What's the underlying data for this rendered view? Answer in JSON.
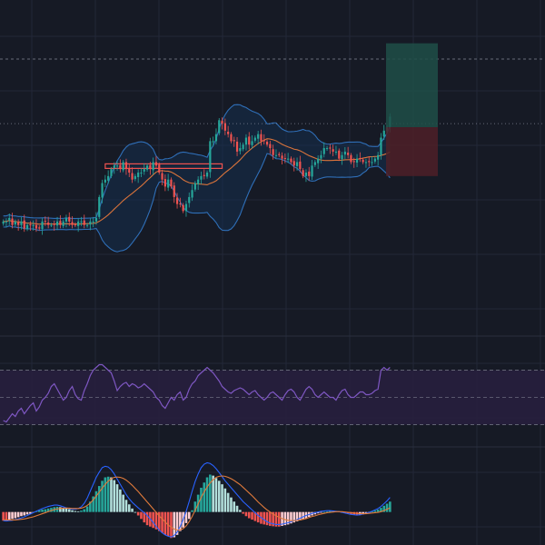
{
  "colors": {
    "background": "#161a25",
    "grid": "#232838",
    "up": "#26a69a",
    "down": "#ef5350",
    "bb_line": "#2f6fb8",
    "bb_fill": "#16304f",
    "ma": "#d9733b",
    "rsi": "#7e57c2",
    "rsi_band": "#271f3e",
    "macd_line": "#2962ff",
    "signal_line": "#e07a3b",
    "hist_up_strong": "#26a69a",
    "hist_up_weak": "#b2dfdb",
    "hist_down_strong": "#ef5350",
    "hist_down_weak": "#ffcdd2",
    "target_zone": "#1f4f48",
    "stop_zone": "#4d2028",
    "level_line": "#9aa0ad"
  },
  "chart_data": [
    {
      "type": "candlestick",
      "panel": "price",
      "overlays": [
        "bollinger_bands",
        "moving_average"
      ],
      "closes": [
        57,
        57,
        58,
        56,
        57,
        56,
        57,
        55,
        56,
        56,
        56,
        55,
        55,
        57,
        57,
        56,
        56,
        56,
        57,
        56,
        57,
        58,
        57,
        56,
        56,
        57,
        57,
        56,
        56,
        57,
        57,
        58,
        64,
        68,
        69,
        70,
        72,
        73,
        73,
        72,
        74,
        72,
        71,
        69,
        70,
        71,
        71,
        72,
        73,
        72,
        74,
        73,
        71,
        69,
        67,
        69,
        67,
        64,
        62,
        62,
        60,
        62,
        64,
        66,
        68,
        69,
        70,
        70,
        71,
        80,
        80,
        82,
        86,
        85,
        83,
        82,
        80,
        80,
        77,
        78,
        79,
        81,
        79,
        80,
        81,
        82,
        80,
        80,
        79,
        78,
        76,
        76,
        76,
        75,
        75,
        75,
        74,
        73,
        74,
        72,
        70,
        71,
        70,
        73,
        74,
        75,
        76,
        78,
        78,
        78,
        77,
        77,
        75,
        76,
        77,
        76,
        74,
        74,
        75,
        75,
        74,
        74,
        74,
        74,
        75,
        76,
        81,
        83,
        84,
        87
      ],
      "price_range": [
        45,
        110
      ],
      "level_line_value": 85,
      "position": {
        "entry": 84,
        "target": 108,
        "stop": 70
      }
    },
    {
      "type": "line",
      "panel": "rsi",
      "band": [
        30,
        70
      ],
      "midline": 50,
      "range": [
        15,
        95
      ],
      "values": [
        33,
        32,
        35,
        38,
        36,
        40,
        42,
        38,
        41,
        44,
        46,
        40,
        43,
        48,
        50,
        53,
        58,
        60,
        56,
        52,
        48,
        50,
        55,
        58,
        52,
        49,
        48,
        55,
        60,
        66,
        70,
        72,
        74,
        74,
        72,
        70,
        68,
        62,
        55,
        58,
        60,
        61,
        58,
        60,
        59,
        57,
        58,
        60,
        58,
        56,
        54,
        50,
        48,
        44,
        42,
        46,
        50,
        48,
        52,
        54,
        48,
        50,
        56,
        60,
        62,
        66,
        68,
        70,
        72,
        70,
        68,
        65,
        62,
        58,
        56,
        54,
        53,
        55,
        56,
        57,
        56,
        54,
        52,
        54,
        55,
        52,
        50,
        48,
        50,
        53,
        54,
        52,
        50,
        48,
        52,
        55,
        56,
        54,
        50,
        48,
        52,
        56,
        58,
        56,
        52,
        50,
        52,
        54,
        52,
        50,
        50,
        48,
        52,
        55,
        56,
        52,
        50,
        50,
        52,
        54,
        54,
        52,
        52,
        53,
        55,
        56,
        70,
        72,
        70,
        72
      ]
    },
    {
      "type": "histogram",
      "panel": "macd",
      "range": [
        -0.9,
        1.8
      ],
      "histogram": [
        -0.25,
        -0.25,
        -0.22,
        -0.2,
        -0.18,
        -0.15,
        -0.12,
        -0.1,
        -0.07,
        -0.05,
        -0.02,
        0.02,
        0.05,
        0.07,
        0.08,
        0.1,
        0.12,
        0.14,
        0.15,
        0.14,
        0.12,
        0.1,
        0.08,
        0.05,
        0.03,
        0.02,
        0.04,
        0.08,
        0.16,
        0.3,
        0.45,
        0.6,
        0.75,
        0.9,
        1.0,
        1.02,
        1.0,
        0.92,
        0.8,
        0.65,
        0.5,
        0.35,
        0.22,
        0.1,
        0.0,
        -0.1,
        -0.2,
        -0.3,
        -0.38,
        -0.42,
        -0.46,
        -0.5,
        -0.55,
        -0.6,
        -0.66,
        -0.7,
        -0.75,
        -0.73,
        -0.66,
        -0.55,
        -0.45,
        -0.32,
        -0.2,
        0.05,
        0.3,
        0.5,
        0.7,
        0.85,
        1.0,
        1.08,
        1.05,
        0.98,
        0.9,
        0.8,
        0.68,
        0.55,
        0.42,
        0.3,
        0.18,
        0.06,
        -0.05,
        -0.12,
        -0.18,
        -0.22,
        -0.26,
        -0.3,
        -0.34,
        -0.36,
        -0.38,
        -0.4,
        -0.41,
        -0.42,
        -0.42,
        -0.4,
        -0.38,
        -0.36,
        -0.33,
        -0.3,
        -0.27,
        -0.24,
        -0.22,
        -0.18,
        -0.14,
        -0.1,
        -0.07,
        -0.04,
        -0.02,
        0.0,
        0.02,
        0.03,
        0.04,
        0.03,
        0.02,
        0.0,
        -0.02,
        -0.04,
        -0.06,
        -0.08,
        -0.1,
        -0.09,
        -0.07,
        -0.05,
        -0.02,
        0.01,
        0.04,
        0.07,
        0.12,
        0.18,
        0.24,
        0.3
      ],
      "macd_line": [
        -0.25,
        -0.26,
        -0.25,
        -0.24,
        -0.22,
        -0.2,
        -0.17,
        -0.14,
        -0.1,
        -0.06,
        -0.02,
        0.02,
        0.06,
        0.1,
        0.13,
        0.16,
        0.18,
        0.2,
        0.2,
        0.18,
        0.15,
        0.12,
        0.1,
        0.08,
        0.08,
        0.1,
        0.15,
        0.25,
        0.4,
        0.6,
        0.8,
        1.0,
        1.15,
        1.28,
        1.32,
        1.3,
        1.22,
        1.1,
        0.95,
        0.8,
        0.65,
        0.5,
        0.38,
        0.28,
        0.2,
        0.12,
        0.05,
        -0.02,
        -0.1,
        -0.2,
        -0.3,
        -0.42,
        -0.52,
        -0.6,
        -0.66,
        -0.7,
        -0.72,
        -0.68,
        -0.58,
        -0.42,
        -0.22,
        0.02,
        0.3,
        0.6,
        0.88,
        1.1,
        1.28,
        1.38,
        1.42,
        1.4,
        1.34,
        1.25,
        1.14,
        1.02,
        0.9,
        0.8,
        0.7,
        0.6,
        0.5,
        0.4,
        0.3,
        0.22,
        0.14,
        0.06,
        -0.02,
        -0.1,
        -0.16,
        -0.22,
        -0.28,
        -0.32,
        -0.34,
        -0.36,
        -0.36,
        -0.35,
        -0.33,
        -0.31,
        -0.28,
        -0.25,
        -0.22,
        -0.18,
        -0.14,
        -0.1,
        -0.07,
        -0.04,
        -0.02,
        0.0,
        0.02,
        0.03,
        0.04,
        0.04,
        0.03,
        0.02,
        0.01,
        -0.01,
        -0.03,
        -0.05,
        -0.07,
        -0.08,
        -0.09,
        -0.08,
        -0.06,
        -0.04,
        -0.01,
        0.02,
        0.06,
        0.1,
        0.16,
        0.24,
        0.32,
        0.42
      ],
      "signal_line": [
        -0.22,
        -0.23,
        -0.23,
        -0.23,
        -0.23,
        -0.22,
        -0.21,
        -0.2,
        -0.18,
        -0.16,
        -0.14,
        -0.11,
        -0.08,
        -0.05,
        -0.02,
        0.01,
        0.04,
        0.07,
        0.09,
        0.1,
        0.11,
        0.11,
        0.11,
        0.1,
        0.1,
        0.1,
        0.11,
        0.14,
        0.19,
        0.26,
        0.35,
        0.46,
        0.57,
        0.69,
        0.8,
        0.89,
        0.96,
        1.0,
        1.01,
        1.0,
        0.97,
        0.92,
        0.85,
        0.77,
        0.68,
        0.59,
        0.49,
        0.39,
        0.29,
        0.19,
        0.09,
        -0.01,
        -0.11,
        -0.2,
        -0.29,
        -0.37,
        -0.44,
        -0.49,
        -0.52,
        -0.52,
        -0.48,
        -0.4,
        -0.28,
        -0.13,
        0.05,
        0.23,
        0.42,
        0.58,
        0.72,
        0.84,
        0.93,
        1.0,
        1.03,
        1.04,
        1.03,
        1.0,
        0.96,
        0.91,
        0.85,
        0.79,
        0.71,
        0.63,
        0.55,
        0.47,
        0.38,
        0.29,
        0.21,
        0.13,
        0.06,
        0.0,
        -0.06,
        -0.11,
        -0.15,
        -0.19,
        -0.22,
        -0.24,
        -0.25,
        -0.25,
        -0.24,
        -0.23,
        -0.21,
        -0.19,
        -0.16,
        -0.13,
        -0.11,
        -0.08,
        -0.06,
        -0.04,
        -0.02,
        -0.01,
        0.0,
        0.01,
        0.01,
        0.01,
        0.0,
        -0.01,
        -0.02,
        -0.03,
        -0.04,
        -0.05,
        -0.05,
        -0.05,
        -0.04,
        -0.03,
        -0.02,
        -0.01,
        0.01,
        0.04,
        0.08,
        0.12
      ]
    }
  ]
}
